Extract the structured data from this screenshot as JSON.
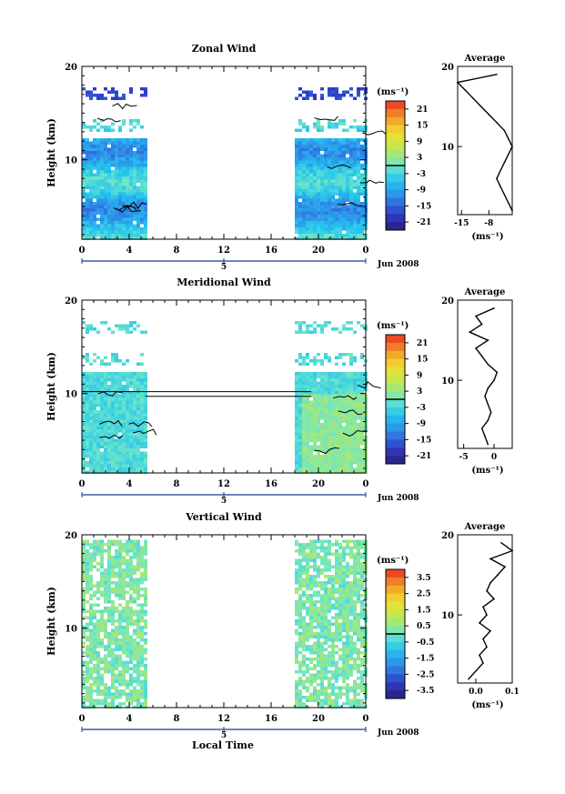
{
  "figure": {
    "xlabel_bottom": "Local Time",
    "date_label": "Jun 2008",
    "day_label": "5",
    "unit_label": "(ms⁻¹)",
    "avg_title": "Average",
    "avg_xlabel": "(ms⁻¹)"
  },
  "chart_data": [
    {
      "type": "heatmap",
      "title": "Zonal Wind",
      "xlabel": "",
      "ylabel": "Height (km)",
      "xlim": [
        0,
        24
      ],
      "ylim": [
        1.5,
        20
      ],
      "x_ticks": [
        "0",
        "4",
        "8",
        "12",
        "16",
        "20",
        "0"
      ],
      "y_ticks": [
        "10",
        "20"
      ],
      "data_gap_hours": [
        5.3,
        18.0
      ],
      "colorbar": {
        "ticks": [
          "21",
          "15",
          "9",
          "3",
          "-3",
          "-9",
          "-15",
          "-21"
        ],
        "range": [
          -24,
          24
        ]
      },
      "average_profile": {
        "xlim": [
          -16,
          -2
        ],
        "x_ticks": [
          "-15",
          "-8"
        ],
        "y_ticks": [
          "10",
          "20"
        ],
        "height_km": [
          2,
          3,
          4,
          5,
          6,
          7,
          8,
          9,
          10,
          11,
          12,
          13,
          14,
          15,
          16,
          17,
          18,
          19
        ],
        "value_ms": [
          -2,
          -3,
          -4,
          -5,
          -6,
          -5,
          -4,
          -3,
          -2,
          -3,
          -4,
          -6,
          -8,
          -10,
          -12,
          -14,
          -16,
          -6
        ]
      }
    },
    {
      "type": "heatmap",
      "title": "Meridional Wind",
      "xlabel": "",
      "ylabel": "Height (km)",
      "xlim": [
        0,
        24
      ],
      "ylim": [
        1.5,
        20
      ],
      "x_ticks": [
        "0",
        "4",
        "8",
        "12",
        "16",
        "20",
        "0"
      ],
      "y_ticks": [
        "10",
        "20"
      ],
      "data_gap_hours": [
        5.3,
        18.0
      ],
      "colorbar": {
        "ticks": [
          "21",
          "15",
          "9",
          "3",
          "-3",
          "-9",
          "-15",
          "-21"
        ],
        "range": [
          -24,
          24
        ]
      },
      "average_profile": {
        "xlim": [
          -6,
          3
        ],
        "x_ticks": [
          "-5",
          "0"
        ],
        "y_ticks": [
          "10",
          "20"
        ],
        "height_km": [
          2,
          3,
          4,
          5,
          6,
          7,
          8,
          9,
          10,
          11,
          12,
          13,
          14,
          15,
          16,
          17,
          18,
          19
        ],
        "value_ms": [
          -1,
          -1.5,
          -2,
          -1,
          -0.5,
          -1,
          -1.5,
          -1,
          0,
          0.5,
          -1,
          -2,
          -3,
          -1,
          -4,
          -2,
          -3,
          0
        ]
      }
    },
    {
      "type": "heatmap",
      "title": "Vertical Wind",
      "xlabel": "Local Time",
      "ylabel": "Height (km)",
      "xlim": [
        0,
        24
      ],
      "ylim": [
        1.5,
        20
      ],
      "x_ticks": [
        "0",
        "4",
        "8",
        "12",
        "16",
        "20",
        "0"
      ],
      "y_ticks": [
        "10",
        "20"
      ],
      "data_gap_hours": [
        5.3,
        18.0
      ],
      "colorbar": {
        "ticks": [
          "3.5",
          "2.5",
          "1.5",
          "0.5",
          "-0.5",
          "-1.5",
          "-2.5",
          "-3.5"
        ],
        "range": [
          -4,
          4
        ]
      },
      "average_profile": {
        "xlim": [
          -0.05,
          0.1
        ],
        "x_ticks": [
          "0.0",
          "0.1"
        ],
        "y_ticks": [
          "10",
          "20"
        ],
        "height_km": [
          2,
          3,
          4,
          5,
          6,
          7,
          8,
          9,
          10,
          11,
          12,
          13,
          14,
          15,
          16,
          17,
          18,
          19
        ],
        "value_ms": [
          -0.02,
          0.0,
          0.02,
          0.01,
          0.03,
          0.02,
          0.04,
          0.01,
          0.03,
          0.02,
          0.05,
          0.03,
          0.04,
          0.06,
          0.08,
          0.04,
          0.1,
          0.07
        ]
      }
    }
  ]
}
